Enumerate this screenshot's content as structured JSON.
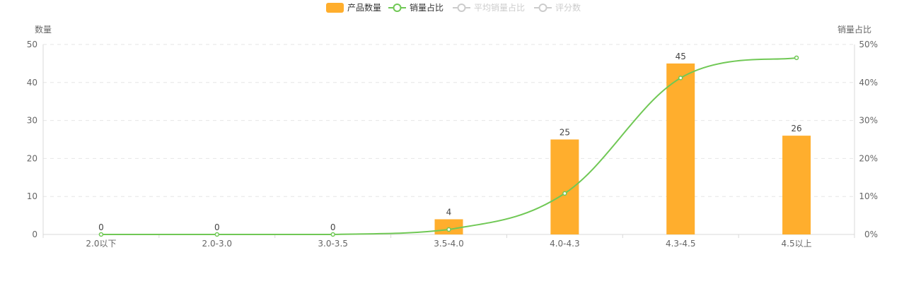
{
  "chart_data": {
    "type": "bar",
    "legend": {
      "placement": "top-center",
      "items": [
        {
          "label": "产品数量",
          "kind": "bar",
          "active": true
        },
        {
          "label": "销量占比",
          "kind": "line",
          "active": true
        },
        {
          "label": "平均销量占比",
          "kind": "line",
          "active": false
        },
        {
          "label": "评分数",
          "kind": "line",
          "active": false
        }
      ]
    },
    "categories": [
      "2.0以下",
      "2.0-3.0",
      "3.0-3.5",
      "3.5-4.0",
      "4.0-4.3",
      "4.3-4.5",
      "4.5以上"
    ],
    "y_left": {
      "label": "数量",
      "min": 0,
      "max": 50,
      "ticks": [
        "0",
        "10",
        "20",
        "30",
        "40",
        "50"
      ]
    },
    "y_right": {
      "label": "销量占比",
      "min": 0,
      "max": 50,
      "ticks": [
        "0%",
        "10%",
        "20%",
        "30%",
        "40%",
        "50%"
      ]
    },
    "grid": true,
    "series": [
      {
        "name": "产品数量",
        "type": "bar",
        "axis": "left",
        "values": [
          0,
          0,
          0,
          4,
          25,
          45,
          26
        ],
        "labels": [
          "0",
          "0",
          "0",
          "4",
          "25",
          "45",
          "26"
        ]
      },
      {
        "name": "销量占比",
        "type": "line",
        "axis": "right",
        "values": [
          0,
          0,
          0,
          1.3,
          10.8,
          41.2,
          46.5
        ]
      }
    ],
    "colors": {
      "bar": "#ffae2d",
      "line": "#70c855",
      "inactive": "#cccccc",
      "grid": "#e6e6e6",
      "axis": "#d9d9d9",
      "text": "#666666"
    }
  }
}
